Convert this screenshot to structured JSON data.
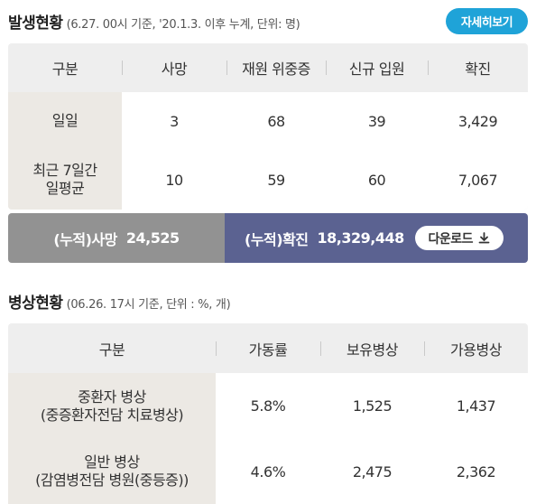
{
  "occurrence": {
    "title": "발생현황",
    "note": "(6.27. 00시 기준, '20.1.3. 이후 누계, 단위: 명)",
    "detail_button": "자세히보기",
    "headers": [
      "구분",
      "사망",
      "재원 위중증",
      "신규 입원",
      "확진"
    ],
    "rows": [
      {
        "label": "일일",
        "values": [
          "3",
          "68",
          "39",
          "3,429"
        ]
      },
      {
        "label_line1": "최근 7일간",
        "label_line2": "일평균",
        "values": [
          "10",
          "59",
          "60",
          "7,067"
        ]
      }
    ],
    "summary": {
      "death_label": "(누적)사망",
      "death_value": "24,525",
      "confirmed_label": "(누적)확진",
      "confirmed_value": "18,329,448",
      "download_label": "다운로드"
    }
  },
  "beds": {
    "title": "병상현황",
    "note": "(06.26. 17시 기준, 단위 : %, 개)",
    "headers": [
      "구분",
      "가동률",
      "보유병상",
      "가용병상"
    ],
    "rows": [
      {
        "label_line1": "중환자 병상",
        "label_line2": "(중증환자전담 치료병상)",
        "values": [
          "5.8%",
          "1,525",
          "1,437"
        ]
      },
      {
        "label_line1": "일반 병상",
        "label_line2": "(감염병전담 병원(중등증))",
        "values": [
          "4.6%",
          "2,475",
          "2,362"
        ]
      }
    ]
  },
  "colors": {
    "detail_button": "#1fa3d8",
    "summary_left": "#929292",
    "summary_right": "#5b6291",
    "label_cell": "#ece9e4",
    "table_bg": "#eeeeee"
  },
  "icons": {
    "download": "download-icon"
  }
}
